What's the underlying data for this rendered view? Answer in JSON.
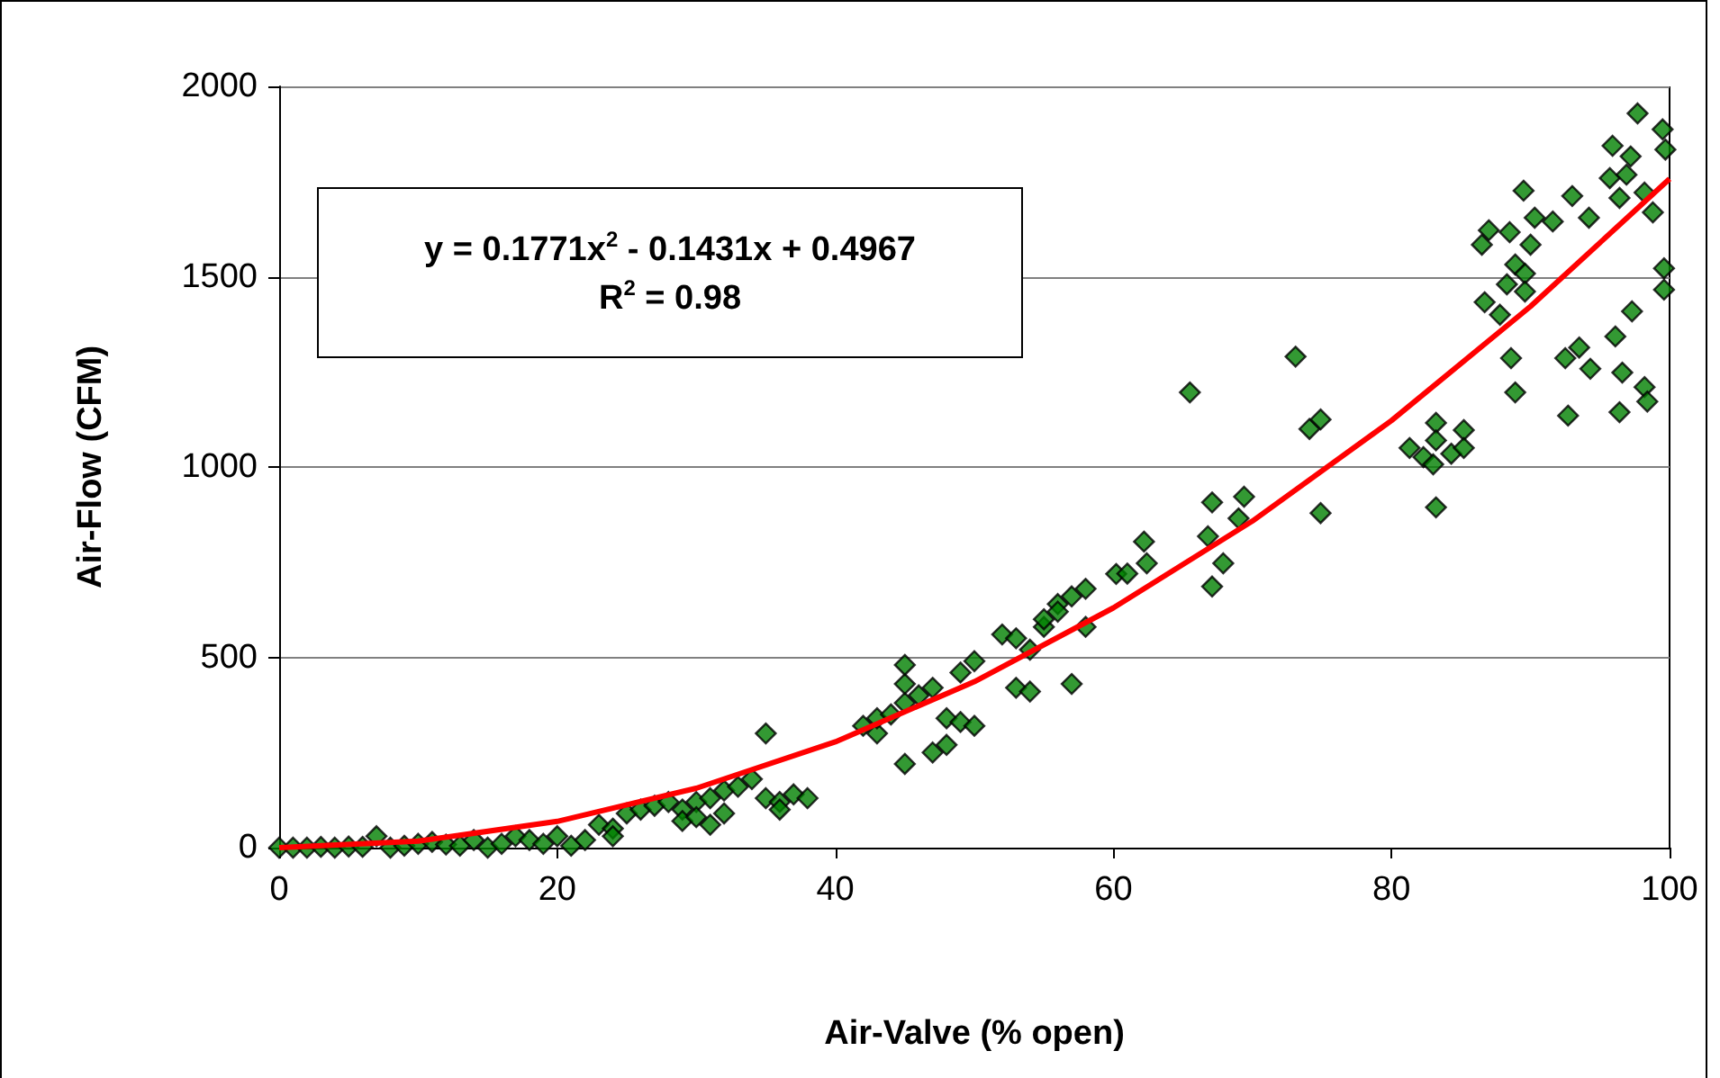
{
  "chart_data": {
    "type": "scatter",
    "xlabel": "Air-Valve (% open)",
    "ylabel": "Air-Flow (CFM)",
    "annotations": [
      "y = 0.1771x$^{2}$ - 0.1431x + 0.4967",
      "R$^{2}$ = 0.98"
    ],
    "xlim": [
      0,
      100
    ],
    "xticks": [
      0,
      20,
      40,
      60,
      80,
      100
    ],
    "ylim": [
      0,
      2000
    ],
    "yticks": [
      0,
      500,
      1000,
      1500,
      2000
    ],
    "grid": "y",
    "marker": "diamond",
    "series": [
      {
        "color": "#008000",
        "x": [
          0,
          1,
          2,
          3,
          4,
          5,
          6,
          7,
          8,
          9,
          10,
          11,
          12,
          13,
          14,
          15,
          16,
          17,
          18,
          19,
          20,
          21,
          22,
          23,
          24,
          24,
          25,
          26,
          27,
          28,
          29,
          29,
          30,
          30,
          31,
          31,
          32,
          32,
          33,
          34,
          35,
          35,
          36,
          36,
          37,
          38,
          42,
          43,
          43,
          44,
          45,
          45,
          45,
          45,
          46,
          47,
          47,
          48,
          48,
          49,
          49,
          50,
          50,
          52,
          53,
          53,
          54,
          54,
          55,
          55,
          56,
          56,
          57,
          57,
          58,
          58,
          60.2,
          61,
          62.2,
          62.4,
          65.5,
          66.8,
          67.1,
          67.1,
          67.9,
          69.0,
          69.4,
          73.1,
          74.1,
          74.9,
          74.9,
          81.3,
          82.3,
          83.0,
          83.2,
          83.2,
          83.2,
          84.3,
          85.2,
          85.2,
          86.5,
          86.7,
          87.0,
          87.8,
          88.3,
          88.5,
          88.6,
          88.9,
          88.9,
          89.5,
          89.6,
          89.6,
          90.0,
          90.3,
          91.6,
          92.5,
          92.7,
          93.0,
          93.5,
          94.2,
          94.3,
          95.7,
          95.9,
          96.1,
          96.4,
          96.4,
          96.6,
          96.9,
          97.2,
          97.3,
          97.7,
          98.2,
          98.2,
          98.4,
          98.8,
          99.5,
          99.6,
          99.6,
          99.7
        ],
        "values": [
          0,
          0,
          0,
          2,
          0,
          3,
          2,
          30,
          0,
          5,
          10,
          15,
          8,
          5,
          20,
          0,
          10,
          30,
          20,
          10,
          30,
          5,
          20,
          60,
          50,
          30,
          90,
          100,
          110,
          120,
          100,
          70,
          120,
          80,
          130,
          60,
          150,
          90,
          160,
          180,
          300,
          130,
          120,
          100,
          140,
          130,
          320,
          300,
          340,
          350,
          380,
          430,
          480,
          220,
          400,
          420,
          250,
          270,
          340,
          460,
          330,
          320,
          490,
          560,
          550,
          420,
          520,
          410,
          580,
          600,
          640,
          620,
          660,
          430,
          680,
          580,
          719,
          720,
          804,
          747,
          1196,
          818,
          907,
          686,
          747,
          865,
          922,
          1290,
          1100,
          1125,
          879,
          1050,
          1026,
          1007,
          1116,
          1070,
          894,
          1035,
          1097,
          1050,
          1584,
          1433,
          1622,
          1400,
          1480,
          1617,
          1286,
          1196,
          1532,
          1726,
          1508,
          1461,
          1584,
          1655,
          1645,
          1286,
          1135,
          1712,
          1314,
          1655,
          1258,
          1759,
          1844,
          1343,
          1707,
          1144,
          1248,
          1768,
          1816,
          1409,
          1929,
          1721,
          1210,
          1172,
          1669,
          1887,
          1522,
          1466,
          1834
        ]
      },
      {
        "type": "line",
        "color": "#ff0000",
        "marker": "none",
        "x": [
          0,
          10,
          20,
          30,
          40,
          50,
          60,
          70,
          80,
          90,
          100
        ],
        "values": [
          0,
          17,
          69,
          156,
          278,
          436,
          630,
          858,
          1122,
          1422,
          1757
        ]
      }
    ]
  }
}
